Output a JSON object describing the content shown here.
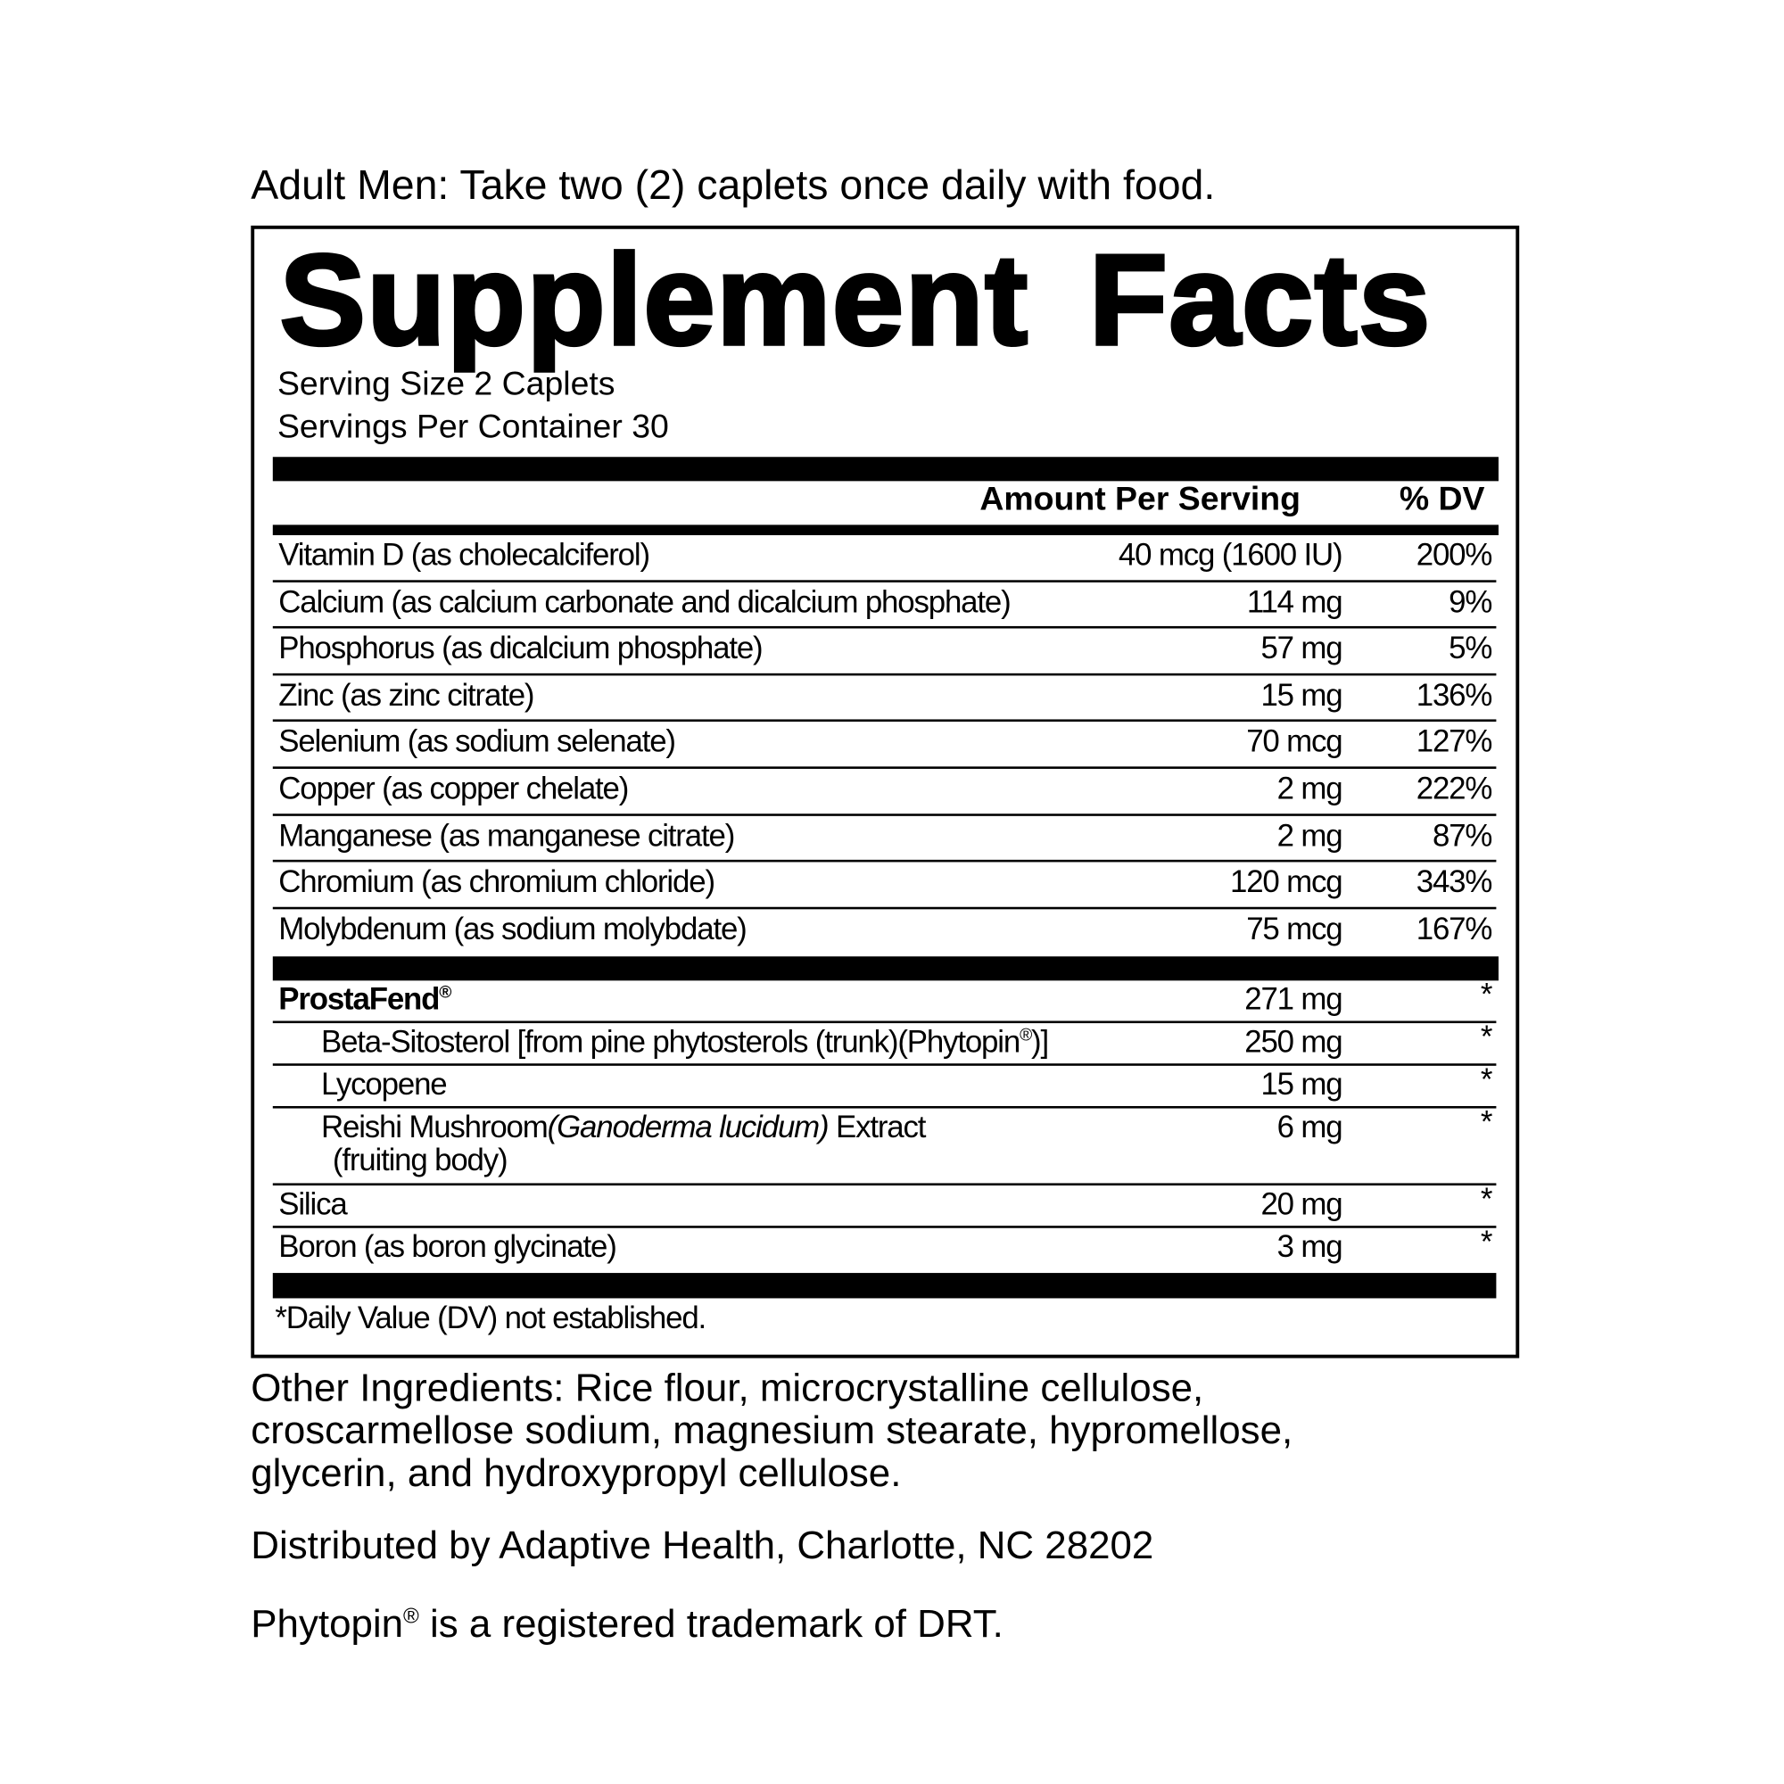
{
  "directions": "Adult Men: Take two (2) caplets once daily with food.",
  "panel": {
    "title": "Supplement Facts",
    "serving_size": "Serving Size 2 Caplets",
    "servings_per_container": "Servings Per Container 30",
    "header_amount": "Amount Per Serving",
    "header_dv": "% DV",
    "nutrients": [
      {
        "name": "Vitamin D (as cholecalciferol)",
        "amount": "40 mcg (1600 IU)",
        "dv": "200%"
      },
      {
        "name": "Calcium (as calcium carbonate and dicalcium phosphate)",
        "amount": "114 mg",
        "dv": "9%"
      },
      {
        "name": "Phosphorus (as dicalcium phosphate)",
        "amount": "57 mg",
        "dv": "5%"
      },
      {
        "name": "Zinc (as zinc citrate)",
        "amount": "15 mg",
        "dv": "136%"
      },
      {
        "name": "Selenium (as sodium selenate)",
        "amount": "70 mcg",
        "dv": "127%"
      },
      {
        "name": "Copper (as copper chelate)",
        "amount": "2 mg",
        "dv": "222%"
      },
      {
        "name": "Manganese (as manganese citrate)",
        "amount": "2 mg",
        "dv": "87%"
      },
      {
        "name": "Chromium (as chromium chloride)",
        "amount": "120 mcg",
        "dv": "343%"
      },
      {
        "name": "Molybdenum (as sodium molybdate)",
        "amount": "75 mcg",
        "dv": "167%"
      }
    ],
    "blend": {
      "name": "ProstaFend",
      "reg": "®",
      "amount": "271 mg",
      "dv": "*"
    },
    "blend_items": [
      {
        "name": "Beta-Sitosterol [from pine phytosterols (trunk)(Phytopin",
        "reg": "®",
        "name_end": ")]",
        "amount": "250 mg",
        "dv": "*"
      },
      {
        "name": "Lycopene",
        "amount": "15 mg",
        "dv": "*"
      },
      {
        "name": "Reishi Mushroom",
        "italic": "(Ganoderma lucidum)",
        "name_end": " Extract",
        "line2": "(fruiting body)",
        "amount": "6 mg",
        "dv": "*"
      }
    ],
    "others": [
      {
        "name": "Silica",
        "amount": "20 mg",
        "dv": "*"
      },
      {
        "name": "Boron (as boron glycinate)",
        "amount": "3 mg",
        "dv": "*"
      }
    ],
    "footnote": "*Daily Value (DV) not established."
  },
  "other_ingredients": [
    "Other Ingredients: Rice flour, microcrystalline cellulose,",
    "croscarmellose sodium, magnesium stearate, hypromellose,",
    "glycerin, and hydroxypropyl cellulose."
  ],
  "distributor": "Distributed by Adaptive Health, Charlotte, NC 28202",
  "trademark": {
    "name": "Phytopin",
    "reg": "®",
    "text": " is a registered trademark of DRT."
  }
}
